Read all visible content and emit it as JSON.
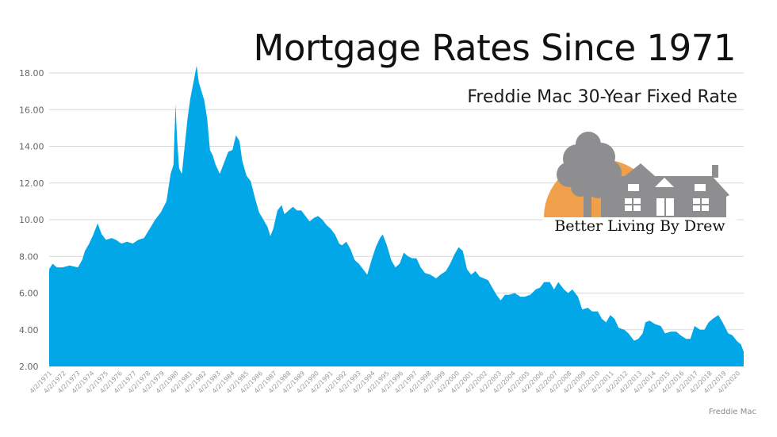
{
  "title": "Mortgage Rates Since 1971",
  "subtitle": "Freddie Mac 30-Year Fixed Rate",
  "source": "Freddie Mac",
  "logo": {
    "text": "Better Living By Drew",
    "icon": "tree-and-house-logo-icon",
    "sun_color": "#F0A04B",
    "house_color": "#8E8E90"
  },
  "colors": {
    "area": "#02A7E8",
    "grid": "#D9D9D9",
    "tick_text": "#666666",
    "x_tick_text": "#9A9A9A"
  },
  "chart_data": {
    "type": "area",
    "title": "Mortgage Rates Since 1971",
    "subtitle": "Freddie Mac 30-Year Fixed Rate",
    "xlabel": "",
    "ylabel": "",
    "ylim": [
      2.0,
      18.0
    ],
    "yticks": [
      "18.00",
      "16.00",
      "14.00",
      "12.00",
      "10.00",
      "8.00",
      "6.00",
      "4.00",
      "2.00"
    ],
    "xlim": [
      1971.25,
      2020.7
    ],
    "grid": true,
    "legend": "none",
    "x_tick_labels": [
      "4/2/1971",
      "4/2/1972",
      "4/2/1973",
      "4/2/1974",
      "4/2/1975",
      "4/2/1976",
      "4/2/1977",
      "4/2/1978",
      "4/2/1979",
      "4/2/1980",
      "4/2/1981",
      "4/2/1982",
      "4/2/1983",
      "4/2/1984",
      "4/2/1985",
      "4/2/1986",
      "4/2/1987",
      "4/2/1988",
      "4/2/1989",
      "4/2/1990",
      "4/2/1991",
      "4/2/1992",
      "4/2/1993",
      "4/2/1994",
      "4/2/1995",
      "4/2/1996",
      "4/2/1997",
      "4/2/1998",
      "4/2/1999",
      "4/2/2000",
      "4/2/2001",
      "4/2/2002",
      "4/2/2003",
      "4/2/2004",
      "4/2/2005",
      "4/2/2006",
      "4/2/2007",
      "4/2/2008",
      "4/2/2009",
      "4/2/2010",
      "4/2/2011",
      "4/2/2012",
      "4/2/2013",
      "4/2/2014",
      "4/2/2015",
      "4/2/2016",
      "4/2/2017",
      "4/2/2018",
      "4/2/2019",
      "4/2/2020"
    ],
    "series": [
      {
        "x": [
          1971.25,
          1971.5,
          1971.8,
          1972.2,
          1972.7,
          1973.3,
          1973.6,
          1973.8,
          1974.1,
          1974.4,
          1974.7,
          1975.0,
          1975.3,
          1975.7,
          1976.0,
          1976.4,
          1976.8,
          1977.2,
          1977.6,
          1978.0,
          1978.4,
          1978.8,
          1979.2,
          1979.6,
          1979.9,
          1980.1,
          1980.25,
          1980.35,
          1980.5,
          1980.7,
          1980.9,
          1981.1,
          1981.3,
          1981.5,
          1981.75,
          1981.9,
          1982.1,
          1982.3,
          1982.5,
          1982.7,
          1982.9,
          1983.1,
          1983.4,
          1983.8,
          1984.0,
          1984.3,
          1984.55,
          1984.8,
          1985.0,
          1985.3,
          1985.6,
          1985.9,
          1986.2,
          1986.5,
          1986.8,
          1987.0,
          1987.2,
          1987.5,
          1987.8,
          1988.0,
          1988.3,
          1988.6,
          1988.9,
          1989.2,
          1989.5,
          1989.8,
          1990.1,
          1990.4,
          1990.7,
          1991.0,
          1991.3,
          1991.6,
          1991.9,
          1992.1,
          1992.4,
          1992.7,
          1993.0,
          1993.3,
          1993.6,
          1993.9,
          1994.2,
          1994.5,
          1994.8,
          1995.0,
          1995.3,
          1995.6,
          1995.9,
          1996.2,
          1996.5,
          1996.8,
          1997.1,
          1997.4,
          1997.7,
          1998.0,
          1998.4,
          1998.8,
          1999.1,
          1999.5,
          1999.8,
          2000.1,
          2000.4,
          2000.7,
          2001.0,
          2001.3,
          2001.6,
          2001.9,
          2002.2,
          2002.5,
          2002.8,
          2003.1,
          2003.4,
          2003.7,
          2004.0,
          2004.4,
          2004.8,
          2005.1,
          2005.5,
          2005.9,
          2006.2,
          2006.5,
          2006.9,
          2007.2,
          2007.5,
          2007.9,
          2008.2,
          2008.5,
          2008.9,
          2009.2,
          2009.6,
          2009.9,
          2010.3,
          2010.6,
          2010.9,
          2011.2,
          2011.5,
          2011.8,
          2012.2,
          2012.5,
          2012.9,
          2013.2,
          2013.5,
          2013.7,
          2014.0,
          2014.4,
          2014.8,
          2015.1,
          2015.5,
          2015.9,
          2016.2,
          2016.6,
          2016.9,
          2017.2,
          2017.6,
          2017.9,
          2018.2,
          2018.5,
          2018.9,
          2019.2,
          2019.6,
          2019.9,
          2020.2,
          2020.5,
          2020.7
        ],
        "y": [
          7.3,
          7.6,
          7.4,
          7.4,
          7.5,
          7.4,
          7.8,
          8.3,
          8.7,
          9.2,
          9.8,
          9.2,
          8.9,
          9.0,
          8.9,
          8.7,
          8.8,
          8.7,
          8.9,
          9.0,
          9.5,
          10.0,
          10.4,
          11.0,
          12.5,
          13.0,
          16.3,
          14.5,
          12.8,
          12.5,
          14.0,
          15.5,
          16.6,
          17.4,
          18.4,
          17.5,
          17.0,
          16.5,
          15.5,
          13.8,
          13.5,
          13.0,
          12.5,
          13.3,
          13.7,
          13.8,
          14.6,
          14.3,
          13.2,
          12.4,
          12.1,
          11.2,
          10.4,
          10.0,
          9.6,
          9.1,
          9.5,
          10.5,
          10.8,
          10.3,
          10.5,
          10.7,
          10.5,
          10.5,
          10.2,
          9.9,
          10.1,
          10.2,
          10.0,
          9.7,
          9.5,
          9.2,
          8.7,
          8.6,
          8.8,
          8.4,
          7.8,
          7.6,
          7.3,
          7.0,
          7.8,
          8.5,
          9.0,
          9.2,
          8.6,
          7.8,
          7.4,
          7.6,
          8.2,
          8.0,
          7.9,
          7.9,
          7.4,
          7.1,
          7.0,
          6.8,
          7.0,
          7.2,
          7.6,
          8.1,
          8.5,
          8.3,
          7.3,
          7.0,
          7.2,
          6.9,
          6.8,
          6.7,
          6.3,
          5.9,
          5.6,
          5.9,
          5.9,
          6.0,
          5.8,
          5.8,
          5.9,
          6.2,
          6.3,
          6.6,
          6.6,
          6.2,
          6.6,
          6.2,
          6.0,
          6.2,
          5.8,
          5.1,
          5.2,
          5.0,
          5.0,
          4.6,
          4.4,
          4.8,
          4.6,
          4.1,
          4.0,
          3.8,
          3.4,
          3.5,
          3.8,
          4.4,
          4.5,
          4.3,
          4.2,
          3.8,
          3.9,
          3.9,
          3.7,
          3.5,
          3.5,
          4.2,
          4.0,
          4.0,
          4.4,
          4.6,
          4.8,
          4.4,
          3.8,
          3.7,
          3.4,
          3.2,
          2.8
        ]
      }
    ]
  }
}
